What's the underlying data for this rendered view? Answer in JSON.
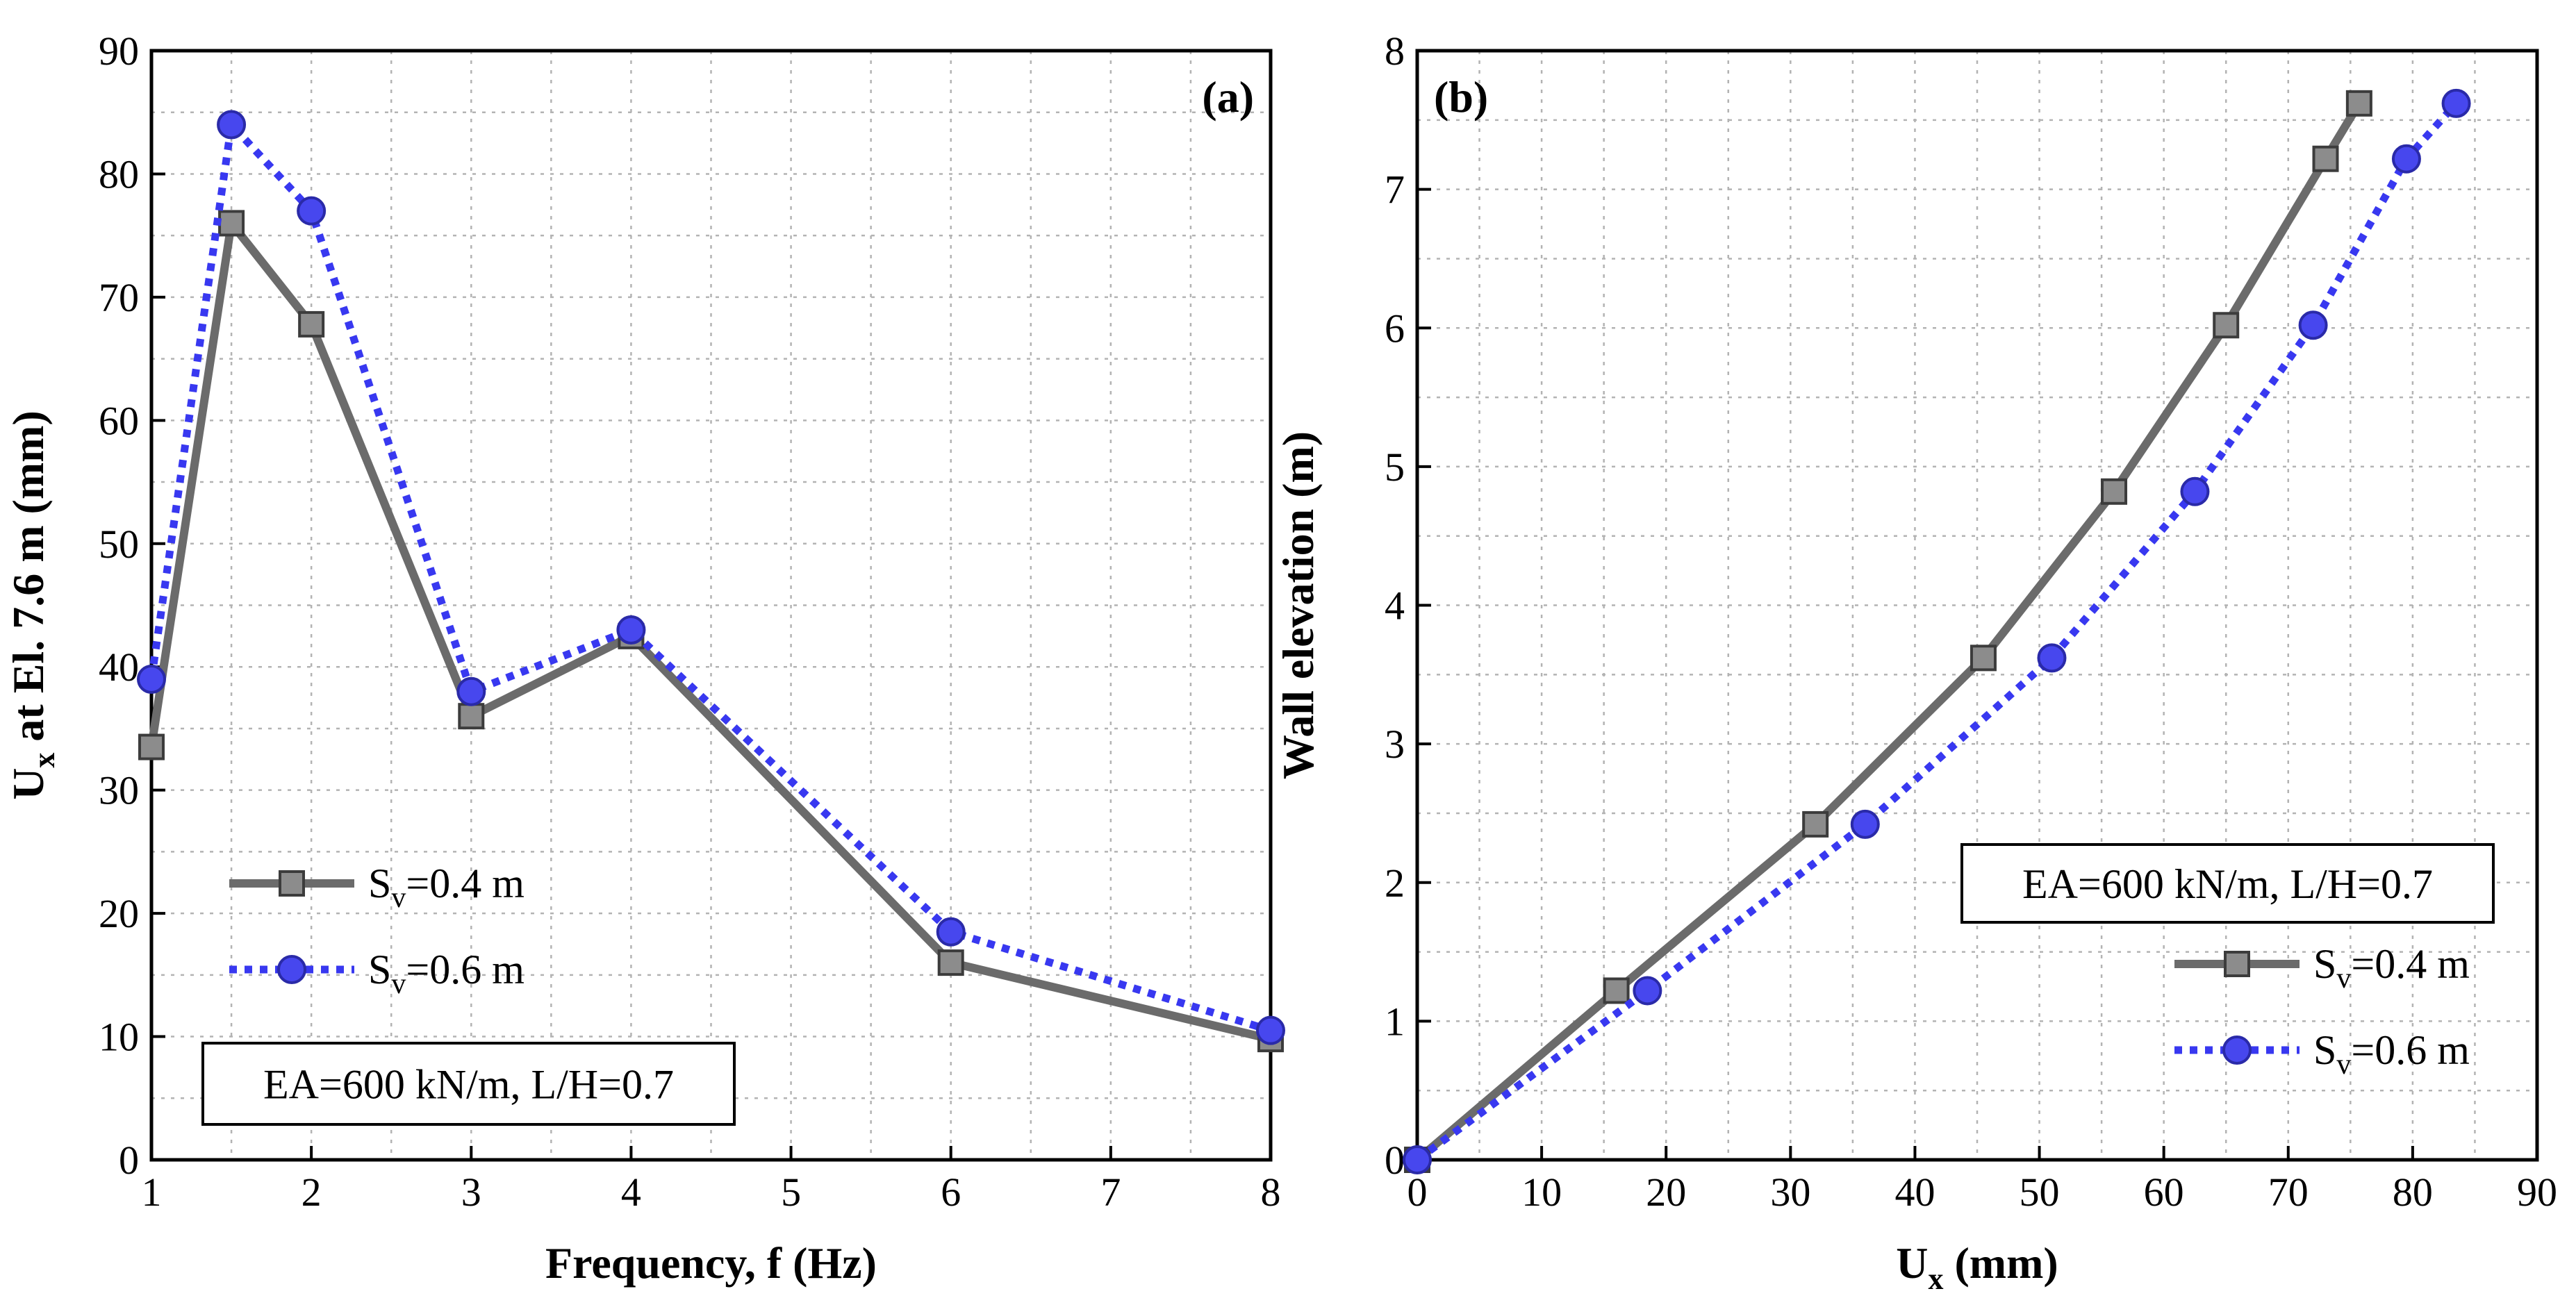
{
  "chart_data": [
    {
      "type": "line",
      "panel_label": "(a)",
      "xlabel": "Frequency, f (Hz)",
      "ylabel": {
        "main": "U",
        "sub": "x",
        "rest": " at El. 7.6 m (mm)"
      },
      "xlim": [
        1,
        8
      ],
      "ylim": [
        0,
        90
      ],
      "xticks": [
        1,
        2,
        3,
        4,
        5,
        6,
        7,
        8
      ],
      "yticks": [
        0,
        10,
        20,
        30,
        40,
        50,
        60,
        70,
        80,
        90
      ],
      "grid": true,
      "legend_position": "lower-left",
      "annotation": "EA=600 kN/m, L/H=0.7",
      "series": [
        {
          "name": "Sv=0.4 m",
          "label_main": "S",
          "label_sub": "v",
          "label_rest": "=0.4 m",
          "color": "#6b6b6b",
          "marker": "square",
          "line_style": "solid",
          "x": [
            1,
            1.5,
            2,
            3,
            4,
            6,
            8
          ],
          "y": [
            33.5,
            76,
            67.8,
            36,
            42.5,
            16,
            9.8
          ]
        },
        {
          "name": "Sv=0.6 m",
          "label_main": "S",
          "label_sub": "v",
          "label_rest": "=0.6 m",
          "color": "#3838f0",
          "marker": "circle",
          "line_style": "dotted",
          "x": [
            1,
            1.5,
            2,
            3,
            4,
            6,
            8
          ],
          "y": [
            39,
            84,
            77,
            38,
            43,
            18.5,
            10.5
          ]
        }
      ]
    },
    {
      "type": "line",
      "panel_label": "(b)",
      "xlabel": {
        "main": "U",
        "sub": "x",
        "rest": " (mm)"
      },
      "ylabel": "Wall elevation (m)",
      "xlim": [
        0,
        90
      ],
      "ylim": [
        0,
        8
      ],
      "xticks": [
        0,
        10,
        20,
        30,
        40,
        50,
        60,
        70,
        80,
        90
      ],
      "yticks": [
        0,
        1,
        2,
        3,
        4,
        5,
        6,
        7,
        8
      ],
      "grid": true,
      "legend_position": "lower-right",
      "annotation": "EA=600 kN/m, L/H=0.7",
      "series": [
        {
          "name": "Sv=0.4 m",
          "label_main": "S",
          "label_sub": "v",
          "label_rest": "=0.4 m",
          "color": "#6b6b6b",
          "marker": "square",
          "line_style": "solid",
          "x": [
            0,
            16,
            32,
            45.5,
            56,
            65,
            73,
            75.7
          ],
          "y": [
            0,
            1.22,
            2.42,
            3.62,
            4.82,
            6.02,
            7.22,
            7.62
          ]
        },
        {
          "name": "Sv=0.6 m",
          "label_main": "S",
          "label_sub": "v",
          "label_rest": "=0.6 m",
          "color": "#3838f0",
          "marker": "circle",
          "line_style": "dotted",
          "x": [
            0,
            18.5,
            36,
            51,
            62.5,
            72,
            79.5,
            83.5
          ],
          "y": [
            0,
            1.22,
            2.42,
            3.62,
            4.82,
            6.02,
            7.22,
            7.62
          ]
        }
      ]
    }
  ]
}
